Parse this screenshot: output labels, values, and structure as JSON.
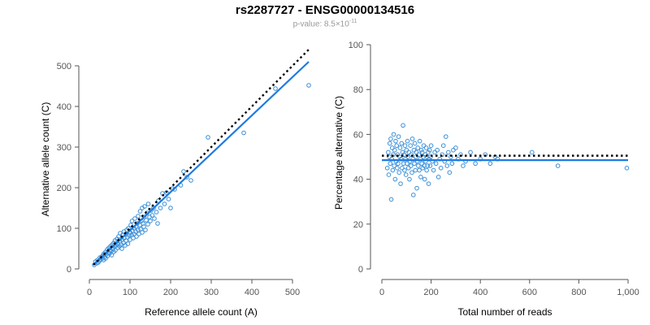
{
  "figure": {
    "title": "rs2287727 - ENSG00000134516",
    "subtitle_prefix": "p-value: 8.5×10",
    "subtitle_exponent": "-11"
  },
  "colors": {
    "points": "#3a8fd8",
    "fit_line": "#1e7be0",
    "expected_line": "#000000",
    "axis": "#555555"
  },
  "chart_data": [
    {
      "type": "scatter",
      "name": "allele-count-scatter",
      "title": "",
      "xlabel": "Reference allele count (A)",
      "ylabel": "Alternative allele count (C)",
      "xlim": [
        0,
        550
      ],
      "ylim": [
        0,
        520
      ],
      "xticks": [
        0,
        100,
        200,
        300,
        400,
        500
      ],
      "yticks": [
        0,
        100,
        200,
        300,
        400,
        500
      ],
      "grid": false,
      "fit_line": {
        "x": [
          10,
          540
        ],
        "y": [
          10,
          510
        ]
      },
      "expected_line": {
        "x": [
          10,
          540
        ],
        "y": [
          10,
          540
        ]
      },
      "points": [
        [
          12,
          10
        ],
        [
          15,
          18
        ],
        [
          18,
          14
        ],
        [
          20,
          22
        ],
        [
          22,
          16
        ],
        [
          25,
          20
        ],
        [
          26,
          28
        ],
        [
          28,
          24
        ],
        [
          30,
          30
        ],
        [
          32,
          26
        ],
        [
          34,
          34
        ],
        [
          35,
          22
        ],
        [
          36,
          38
        ],
        [
          38,
          30
        ],
        [
          40,
          42
        ],
        [
          40,
          26
        ],
        [
          42,
          36
        ],
        [
          44,
          48
        ],
        [
          45,
          32
        ],
        [
          46,
          40
        ],
        [
          48,
          52
        ],
        [
          50,
          38
        ],
        [
          50,
          46
        ],
        [
          52,
          56
        ],
        [
          54,
          44
        ],
        [
          55,
          34
        ],
        [
          56,
          60
        ],
        [
          58,
          50
        ],
        [
          60,
          42
        ],
        [
          60,
          64
        ],
        [
          62,
          55
        ],
        [
          63,
          70
        ],
        [
          64,
          46
        ],
        [
          66,
          58
        ],
        [
          68,
          74
        ],
        [
          70,
          52
        ],
        [
          70,
          62
        ],
        [
          72,
          80
        ],
        [
          74,
          56
        ],
        [
          75,
          68
        ],
        [
          76,
          88
        ],
        [
          78,
          60
        ],
        [
          80,
          72
        ],
        [
          80,
          50
        ],
        [
          82,
          84
        ],
        [
          84,
          64
        ],
        [
          85,
          92
        ],
        [
          86,
          76
        ],
        [
          88,
          58
        ],
        [
          90,
          86
        ],
        [
          90,
          70
        ],
        [
          92,
          96
        ],
        [
          94,
          78
        ],
        [
          95,
          62
        ],
        [
          96,
          100
        ],
        [
          98,
          82
        ],
        [
          100,
          90
        ],
        [
          100,
          72
        ],
        [
          102,
          108
        ],
        [
          104,
          84
        ],
        [
          105,
          118
        ],
        [
          106,
          94
        ],
        [
          108,
          76
        ],
        [
          110,
          100
        ],
        [
          110,
          86
        ],
        [
          112,
          124
        ],
        [
          114,
          92
        ],
        [
          115,
          104
        ],
        [
          116,
          80
        ],
        [
          118,
          112
        ],
        [
          120,
          96
        ],
        [
          120,
          130
        ],
        [
          122,
          86
        ],
        [
          124,
          108
        ],
        [
          125,
          142
        ],
        [
          126,
          98
        ],
        [
          128,
          118
        ],
        [
          130,
          90
        ],
        [
          130,
          150
        ],
        [
          132,
          112
        ],
        [
          134,
          104
        ],
        [
          135,
          128
        ],
        [
          136,
          154
        ],
        [
          138,
          96
        ],
        [
          140,
          120
        ],
        [
          142,
          138
        ],
        [
          144,
          110
        ],
        [
          145,
          160
        ],
        [
          148,
          128
        ],
        [
          150,
          118
        ],
        [
          152,
          144
        ],
        [
          155,
          132
        ],
        [
          158,
          150
        ],
        [
          160,
          124
        ],
        [
          165,
          140
        ],
        [
          168,
          112
        ],
        [
          170,
          168
        ],
        [
          175,
          150
        ],
        [
          180,
          186
        ],
        [
          185,
          160
        ],
        [
          190,
          188
        ],
        [
          195,
          172
        ],
        [
          200,
          150
        ],
        [
          205,
          198
        ],
        [
          210,
          196
        ],
        [
          225,
          206
        ],
        [
          232,
          240
        ],
        [
          240,
          226
        ],
        [
          250,
          218
        ],
        [
          292,
          324
        ],
        [
          380,
          335
        ],
        [
          458,
          444
        ],
        [
          540,
          452
        ]
      ]
    },
    {
      "type": "scatter",
      "name": "percentage-alternative-scatter",
      "title": "",
      "xlabel": "Total number of reads",
      "ylabel": "Percentage alternative (C)",
      "xlim": [
        0,
        1000
      ],
      "ylim": [
        0,
        100
      ],
      "xticks": [
        0,
        200,
        400,
        600,
        800,
        1000
      ],
      "xtick_labels": [
        "0",
        "200",
        "400",
        "600",
        "800",
        "1,000"
      ],
      "yticks": [
        0,
        20,
        40,
        60,
        80,
        100
      ],
      "grid": false,
      "fit_line": {
        "x": [
          0,
          1000
        ],
        "y": [
          48.5,
          48.5
        ]
      },
      "expected_line": {
        "x": [
          0,
          1000
        ],
        "y": [
          50.5,
          50.5
        ]
      },
      "points": [
        [
          22,
          45
        ],
        [
          26,
          52
        ],
        [
          28,
          42
        ],
        [
          30,
          50
        ],
        [
          32,
          56
        ],
        [
          34,
          47
        ],
        [
          36,
          58
        ],
        [
          38,
          31
        ],
        [
          40,
          49
        ],
        [
          42,
          54
        ],
        [
          44,
          44
        ],
        [
          46,
          51
        ],
        [
          48,
          60
        ],
        [
          50,
          46
        ],
        [
          52,
          53
        ],
        [
          54,
          40
        ],
        [
          56,
          57
        ],
        [
          58,
          48
        ],
        [
          60,
          55
        ],
        [
          62,
          45
        ],
        [
          64,
          51
        ],
        [
          66,
          47
        ],
        [
          68,
          59
        ],
        [
          70,
          43
        ],
        [
          72,
          50
        ],
        [
          74,
          54
        ],
        [
          76,
          38
        ],
        [
          78,
          49
        ],
        [
          80,
          56
        ],
        [
          82,
          45
        ],
        [
          84,
          52
        ],
        [
          86,
          64
        ],
        [
          88,
          47
        ],
        [
          90,
          51
        ],
        [
          92,
          44
        ],
        [
          94,
          55
        ],
        [
          96,
          49
        ],
        [
          98,
          42
        ],
        [
          100,
          53
        ],
        [
          102,
          47
        ],
        [
          104,
          57
        ],
        [
          106,
          50
        ],
        [
          108,
          45
        ],
        [
          110,
          52
        ],
        [
          112,
          40
        ],
        [
          114,
          48
        ],
        [
          116,
          55
        ],
        [
          118,
          46
        ],
        [
          120,
          51
        ],
        [
          122,
          43
        ],
        [
          124,
          58
        ],
        [
          126,
          49
        ],
        [
          128,
          33
        ],
        [
          130,
          53
        ],
        [
          132,
          47
        ],
        [
          134,
          56
        ],
        [
          136,
          44
        ],
        [
          138,
          50
        ],
        [
          140,
          52
        ],
        [
          142,
          36
        ],
        [
          144,
          48
        ],
        [
          146,
          54
        ],
        [
          148,
          46
        ],
        [
          150,
          51
        ],
        [
          152,
          44
        ],
        [
          154,
          57
        ],
        [
          156,
          49
        ],
        [
          158,
          41
        ],
        [
          160,
          53
        ],
        [
          162,
          47
        ],
        [
          164,
          52
        ],
        [
          166,
          45
        ],
        [
          168,
          50
        ],
        [
          170,
          55
        ],
        [
          172,
          46
        ],
        [
          174,
          40
        ],
        [
          176,
          51
        ],
        [
          178,
          48
        ],
        [
          180,
          54
        ],
        [
          182,
          44
        ],
        [
          184,
          50
        ],
        [
          186,
          46
        ],
        [
          188,
          52
        ],
        [
          190,
          38
        ],
        [
          192,
          49
        ],
        [
          194,
          53
        ],
        [
          196,
          46
        ],
        [
          198,
          50
        ],
        [
          200,
          55
        ],
        [
          205,
          48
        ],
        [
          210,
          44
        ],
        [
          215,
          52
        ],
        [
          220,
          47
        ],
        [
          225,
          53
        ],
        [
          230,
          41
        ],
        [
          235,
          49
        ],
        [
          240,
          45
        ],
        [
          245,
          51
        ],
        [
          250,
          55
        ],
        [
          255,
          48
        ],
        [
          260,
          59
        ],
        [
          265,
          46
        ],
        [
          270,
          52
        ],
        [
          275,
          43
        ],
        [
          280,
          50
        ],
        [
          285,
          47
        ],
        [
          290,
          53
        ],
        [
          300,
          54
        ],
        [
          310,
          49
        ],
        [
          320,
          51
        ],
        [
          330,
          46
        ],
        [
          340,
          48
        ],
        [
          360,
          52
        ],
        [
          380,
          47
        ],
        [
          400,
          49
        ],
        [
          420,
          51
        ],
        [
          440,
          47
        ],
        [
          460,
          50
        ],
        [
          470,
          49
        ],
        [
          610,
          52
        ],
        [
          715,
          46
        ],
        [
          995,
          45
        ]
      ]
    }
  ]
}
